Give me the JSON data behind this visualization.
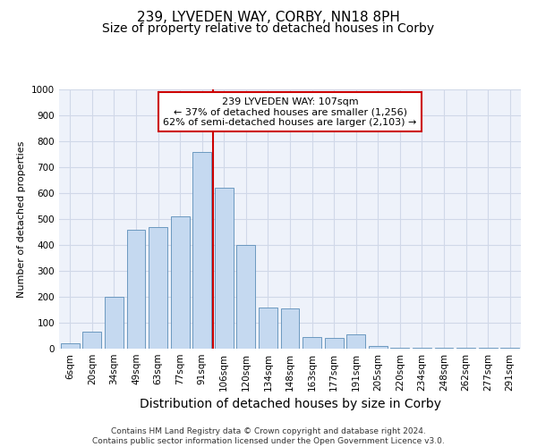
{
  "title1": "239, LYVEDEN WAY, CORBY, NN18 8PH",
  "title2": "Size of property relative to detached houses in Corby",
  "xlabel": "Distribution of detached houses by size in Corby",
  "ylabel": "Number of detached properties",
  "categories": [
    "6sqm",
    "20sqm",
    "34sqm",
    "49sqm",
    "63sqm",
    "77sqm",
    "91sqm",
    "106sqm",
    "120sqm",
    "134sqm",
    "148sqm",
    "163sqm",
    "177sqm",
    "191sqm",
    "205sqm",
    "220sqm",
    "234sqm",
    "248sqm",
    "262sqm",
    "277sqm",
    "291sqm"
  ],
  "values": [
    20,
    65,
    200,
    460,
    470,
    510,
    760,
    620,
    400,
    160,
    155,
    45,
    40,
    55,
    10,
    5,
    5,
    5,
    5,
    5,
    5
  ],
  "bar_color": "#c5d9f0",
  "bar_edge_color": "#5b8db8",
  "red_line_index": 7,
  "property_line_color": "#cc0000",
  "annotation_text": "239 LYVEDEN WAY: 107sqm\n← 37% of detached houses are smaller (1,256)\n62% of semi-detached houses are larger (2,103) →",
  "annotation_box_color": "#ffffff",
  "annotation_box_edge": "#cc0000",
  "ylim": [
    0,
    1000
  ],
  "yticks": [
    0,
    100,
    200,
    300,
    400,
    500,
    600,
    700,
    800,
    900,
    1000
  ],
  "footer": "Contains HM Land Registry data © Crown copyright and database right 2024.\nContains public sector information licensed under the Open Government Licence v3.0.",
  "bg_color": "#eef2fa",
  "grid_color": "#d0d8e8",
  "title1_fontsize": 11,
  "title2_fontsize": 10,
  "xlabel_fontsize": 10,
  "ylabel_fontsize": 8,
  "tick_fontsize": 7.5,
  "annotation_fontsize": 8,
  "footer_fontsize": 6.5
}
